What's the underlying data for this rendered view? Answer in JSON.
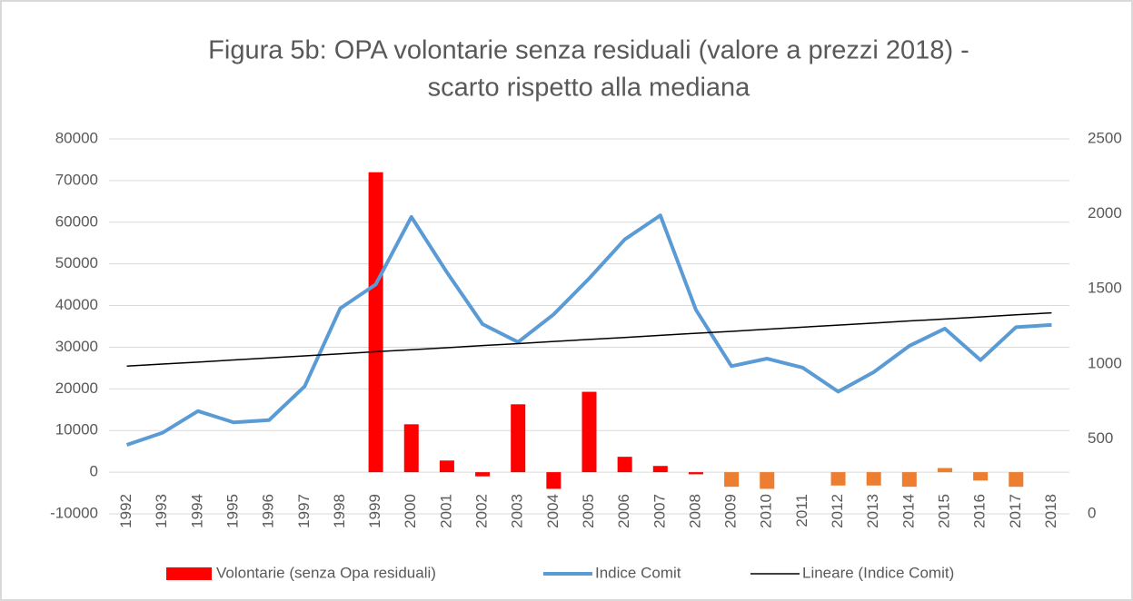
{
  "chart_data": {
    "type": "bar",
    "title": "Figura 5b: OPA volontarie senza residuali (valore a prezzi 2018) -",
    "subtitle": "scarto rispetto alla mediana",
    "categories": [
      "1992",
      "1993",
      "1994",
      "1995",
      "1996",
      "1997",
      "1998",
      "1999",
      "2000",
      "2001",
      "2002",
      "2003",
      "2004",
      "2005",
      "2006",
      "2007",
      "2008",
      "2009",
      "2010",
      "2011",
      "2012",
      "2013",
      "2014",
      "2015",
      "2016",
      "2017",
      "2018"
    ],
    "series": [
      {
        "name": "Volontarie (senza Opa residuali)",
        "type": "bar",
        "color": "#ff0000",
        "colors": [
          "#ff0000",
          "#ff0000",
          "#ff0000",
          "#ff0000",
          "#ff0000",
          "#ff0000",
          "#ff0000",
          "#ff0000",
          "#ff0000",
          "#ff0000",
          "#ff0000",
          "#ff0000",
          "#ff0000",
          "#ff0000",
          "#ff0000",
          "#ff0000",
          "#ff0000",
          "#ed7d31",
          "#ed7d31",
          "#ed7d31",
          "#ed7d31",
          "#ed7d31",
          "#ed7d31",
          "#ed7d31",
          "#ed7d31",
          "#ed7d31",
          "#ed7d31"
        ],
        "values": [
          null,
          null,
          null,
          null,
          null,
          null,
          null,
          72000,
          11500,
          2800,
          -1000,
          16300,
          -4000,
          19300,
          3700,
          1500,
          -500,
          -3500,
          -4000,
          null,
          -3200,
          -3200,
          -3500,
          1000,
          -2000,
          -3500,
          null
        ]
      },
      {
        "name": "Indice Comit",
        "type": "line",
        "axis": "y2",
        "color": "#5b9bd5",
        "values": [
          460,
          540,
          685,
          610,
          625,
          850,
          1370,
          1530,
          1980,
          1610,
          1265,
          1145,
          1330,
          1570,
          1830,
          1990,
          1360,
          985,
          1035,
          975,
          815,
          945,
          1120,
          1235,
          1025,
          1245,
          1260
        ]
      },
      {
        "name": "Lineare (Indice Comit)",
        "type": "line",
        "axis": "y2",
        "color": "#000000",
        "values": [
          985,
          999,
          1012,
          1026,
          1040,
          1053,
          1067,
          1081,
          1094,
          1108,
          1122,
          1135,
          1149,
          1163,
          1176,
          1190,
          1204,
          1217,
          1231,
          1245,
          1258,
          1272,
          1286,
          1299,
          1313,
          1327,
          1340
        ]
      }
    ],
    "ylim": [
      -10000,
      80000
    ],
    "yticks": [
      -10000,
      0,
      10000,
      20000,
      30000,
      40000,
      50000,
      60000,
      70000,
      80000
    ],
    "y2lim": [
      0,
      2500
    ],
    "y2ticks": [
      0,
      500,
      1000,
      1500,
      2000,
      2500
    ],
    "grid": true,
    "legend": "bottom"
  }
}
